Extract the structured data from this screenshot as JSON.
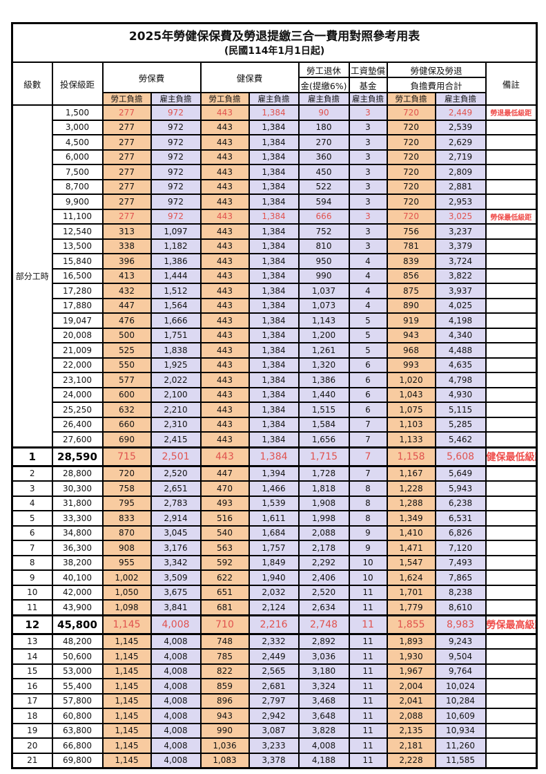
{
  "title": "2025年勞健保保費及勞退提繳三合一費用對照參考用表",
  "subtitle": "(民國114年1月1日起)",
  "header": {
    "level": "級數",
    "bracket": "投保級距",
    "labor_insurance": "勞保費",
    "health_insurance": "健保費",
    "pension_line1": "勞工退休",
    "pension_line2": "金(提繳6%)",
    "wage_fund_line1": "工資墊償",
    "wage_fund_line2": "基金",
    "total_line1": "勞健保及勞退",
    "total_line2": "負擔費用合計",
    "remarks": "備註",
    "employee": "勞工負擔",
    "employer": "雇主負擔"
  },
  "part_time_label": "部分工時",
  "colors": {
    "employee_bg": "#F8CBA0",
    "employer_bg": "#DCD9F2",
    "highlight_text": "#E0524E",
    "remark_text": "#EF4D4A"
  },
  "rows": [
    {
      "section_label": "部分工時",
      "section_rows": 23,
      "bracket": "1,500",
      "labor_emp": "277",
      "labor_er": "972",
      "health_emp": "443",
      "health_er": "1,384",
      "pension_er": "90",
      "fund_er": "3",
      "total_emp": "720",
      "total_er": "2,449",
      "remark": "勞退最低級距",
      "red": true,
      "big": false
    },
    {
      "bracket": "3,000",
      "labor_emp": "277",
      "labor_er": "972",
      "health_emp": "443",
      "health_er": "1,384",
      "pension_er": "180",
      "fund_er": "3",
      "total_emp": "720",
      "total_er": "2,539",
      "remark": "",
      "red": false,
      "big": false
    },
    {
      "bracket": "4,500",
      "labor_emp": "277",
      "labor_er": "972",
      "health_emp": "443",
      "health_er": "1,384",
      "pension_er": "270",
      "fund_er": "3",
      "total_emp": "720",
      "total_er": "2,629",
      "remark": "",
      "red": false,
      "big": false
    },
    {
      "bracket": "6,000",
      "labor_emp": "277",
      "labor_er": "972",
      "health_emp": "443",
      "health_er": "1,384",
      "pension_er": "360",
      "fund_er": "3",
      "total_emp": "720",
      "total_er": "2,719",
      "remark": "",
      "red": false,
      "big": false
    },
    {
      "bracket": "7,500",
      "labor_emp": "277",
      "labor_er": "972",
      "health_emp": "443",
      "health_er": "1,384",
      "pension_er": "450",
      "fund_er": "3",
      "total_emp": "720",
      "total_er": "2,809",
      "remark": "",
      "red": false,
      "big": false
    },
    {
      "bracket": "8,700",
      "labor_emp": "277",
      "labor_er": "972",
      "health_emp": "443",
      "health_er": "1,384",
      "pension_er": "522",
      "fund_er": "3",
      "total_emp": "720",
      "total_er": "2,881",
      "remark": "",
      "red": false,
      "big": false
    },
    {
      "bracket": "9,900",
      "labor_emp": "277",
      "labor_er": "972",
      "health_emp": "443",
      "health_er": "1,384",
      "pension_er": "594",
      "fund_er": "3",
      "total_emp": "720",
      "total_er": "2,953",
      "remark": "",
      "red": false,
      "big": false
    },
    {
      "bracket": "11,100",
      "labor_emp": "277",
      "labor_er": "972",
      "health_emp": "443",
      "health_er": "1,384",
      "pension_er": "666",
      "fund_er": "3",
      "total_emp": "720",
      "total_er": "3,025",
      "remark": "勞保最低級距",
      "red": true,
      "big": false
    },
    {
      "bracket": "12,540",
      "labor_emp": "313",
      "labor_er": "1,097",
      "health_emp": "443",
      "health_er": "1,384",
      "pension_er": "752",
      "fund_er": "3",
      "total_emp": "756",
      "total_er": "3,237",
      "remark": "",
      "red": false,
      "big": false
    },
    {
      "bracket": "13,500",
      "labor_emp": "338",
      "labor_er": "1,182",
      "health_emp": "443",
      "health_er": "1,384",
      "pension_er": "810",
      "fund_er": "3",
      "total_emp": "781",
      "total_er": "3,379",
      "remark": "",
      "red": false,
      "big": false
    },
    {
      "bracket": "15,840",
      "labor_emp": "396",
      "labor_er": "1,386",
      "health_emp": "443",
      "health_er": "1,384",
      "pension_er": "950",
      "fund_er": "4",
      "total_emp": "839",
      "total_er": "3,724",
      "remark": "",
      "red": false,
      "big": false
    },
    {
      "bracket": "16,500",
      "labor_emp": "413",
      "labor_er": "1,444",
      "health_emp": "443",
      "health_er": "1,384",
      "pension_er": "990",
      "fund_er": "4",
      "total_emp": "856",
      "total_er": "3,822",
      "remark": "",
      "red": false,
      "big": false
    },
    {
      "bracket": "17,280",
      "labor_emp": "432",
      "labor_er": "1,512",
      "health_emp": "443",
      "health_er": "1,384",
      "pension_er": "1,037",
      "fund_er": "4",
      "total_emp": "875",
      "total_er": "3,937",
      "remark": "",
      "red": false,
      "big": false
    },
    {
      "bracket": "17,880",
      "labor_emp": "447",
      "labor_er": "1,564",
      "health_emp": "443",
      "health_er": "1,384",
      "pension_er": "1,073",
      "fund_er": "4",
      "total_emp": "890",
      "total_er": "4,025",
      "remark": "",
      "red": false,
      "big": false
    },
    {
      "bracket": "19,047",
      "labor_emp": "476",
      "labor_er": "1,666",
      "health_emp": "443",
      "health_er": "1,384",
      "pension_er": "1,143",
      "fund_er": "5",
      "total_emp": "919",
      "total_er": "4,198",
      "remark": "",
      "red": false,
      "big": false
    },
    {
      "bracket": "20,008",
      "labor_emp": "500",
      "labor_er": "1,751",
      "health_emp": "443",
      "health_er": "1,384",
      "pension_er": "1,200",
      "fund_er": "5",
      "total_emp": "943",
      "total_er": "4,340",
      "remark": "",
      "red": false,
      "big": false
    },
    {
      "bracket": "21,009",
      "labor_emp": "525",
      "labor_er": "1,838",
      "health_emp": "443",
      "health_er": "1,384",
      "pension_er": "1,261",
      "fund_er": "5",
      "total_emp": "968",
      "total_er": "4,488",
      "remark": "",
      "red": false,
      "big": false
    },
    {
      "bracket": "22,000",
      "labor_emp": "550",
      "labor_er": "1,925",
      "health_emp": "443",
      "health_er": "1,384",
      "pension_er": "1,320",
      "fund_er": "6",
      "total_emp": "993",
      "total_er": "4,635",
      "remark": "",
      "red": false,
      "big": false
    },
    {
      "bracket": "23,100",
      "labor_emp": "577",
      "labor_er": "2,022",
      "health_emp": "443",
      "health_er": "1,384",
      "pension_er": "1,386",
      "fund_er": "6",
      "total_emp": "1,020",
      "total_er": "4,798",
      "remark": "",
      "red": false,
      "big": false
    },
    {
      "bracket": "24,000",
      "labor_emp": "600",
      "labor_er": "2,100",
      "health_emp": "443",
      "health_er": "1,384",
      "pension_er": "1,440",
      "fund_er": "6",
      "total_emp": "1,043",
      "total_er": "4,930",
      "remark": "",
      "red": false,
      "big": false
    },
    {
      "bracket": "25,250",
      "labor_emp": "632",
      "labor_er": "2,210",
      "health_emp": "443",
      "health_er": "1,384",
      "pension_er": "1,515",
      "fund_er": "6",
      "total_emp": "1,075",
      "total_er": "5,115",
      "remark": "",
      "red": false,
      "big": false
    },
    {
      "bracket": "26,400",
      "labor_emp": "660",
      "labor_er": "2,310",
      "health_emp": "443",
      "health_er": "1,384",
      "pension_er": "1,584",
      "fund_er": "7",
      "total_emp": "1,103",
      "total_er": "5,285",
      "remark": "",
      "red": false,
      "big": false
    },
    {
      "bracket": "27,600",
      "labor_emp": "690",
      "labor_er": "2,415",
      "health_emp": "443",
      "health_er": "1,384",
      "pension_er": "1,656",
      "fund_er": "7",
      "total_emp": "1,133",
      "total_er": "5,462",
      "remark": "",
      "red": false,
      "big": false
    },
    {
      "level": "1",
      "bracket": "28,590",
      "labor_emp": "715",
      "labor_er": "2,501",
      "health_emp": "443",
      "health_er": "1,384",
      "pension_er": "1,715",
      "fund_er": "7",
      "total_emp": "1,158",
      "total_er": "5,608",
      "remark": "健保最低級距",
      "red": true,
      "big": true
    },
    {
      "level": "2",
      "bracket": "28,800",
      "labor_emp": "720",
      "labor_er": "2,520",
      "health_emp": "447",
      "health_er": "1,394",
      "pension_er": "1,728",
      "fund_er": "7",
      "total_emp": "1,167",
      "total_er": "5,649",
      "remark": "",
      "red": false,
      "big": false
    },
    {
      "level": "3",
      "bracket": "30,300",
      "labor_emp": "758",
      "labor_er": "2,651",
      "health_emp": "470",
      "health_er": "1,466",
      "pension_er": "1,818",
      "fund_er": "8",
      "total_emp": "1,228",
      "total_er": "5,943",
      "remark": "",
      "red": false,
      "big": false
    },
    {
      "level": "4",
      "bracket": "31,800",
      "labor_emp": "795",
      "labor_er": "2,783",
      "health_emp": "493",
      "health_er": "1,539",
      "pension_er": "1,908",
      "fund_er": "8",
      "total_emp": "1,288",
      "total_er": "6,238",
      "remark": "",
      "red": false,
      "big": false
    },
    {
      "level": "5",
      "bracket": "33,300",
      "labor_emp": "833",
      "labor_er": "2,914",
      "health_emp": "516",
      "health_er": "1,611",
      "pension_er": "1,998",
      "fund_er": "8",
      "total_emp": "1,349",
      "total_er": "6,531",
      "remark": "",
      "red": false,
      "big": false
    },
    {
      "level": "6",
      "bracket": "34,800",
      "labor_emp": "870",
      "labor_er": "3,045",
      "health_emp": "540",
      "health_er": "1,684",
      "pension_er": "2,088",
      "fund_er": "9",
      "total_emp": "1,410",
      "total_er": "6,826",
      "remark": "",
      "red": false,
      "big": false
    },
    {
      "level": "7",
      "bracket": "36,300",
      "labor_emp": "908",
      "labor_er": "3,176",
      "health_emp": "563",
      "health_er": "1,757",
      "pension_er": "2,178",
      "fund_er": "9",
      "total_emp": "1,471",
      "total_er": "7,120",
      "remark": "",
      "red": false,
      "big": false
    },
    {
      "level": "8",
      "bracket": "38,200",
      "labor_emp": "955",
      "labor_er": "3,342",
      "health_emp": "592",
      "health_er": "1,849",
      "pension_er": "2,292",
      "fund_er": "10",
      "total_emp": "1,547",
      "total_er": "7,493",
      "remark": "",
      "red": false,
      "big": false
    },
    {
      "level": "9",
      "bracket": "40,100",
      "labor_emp": "1,002",
      "labor_er": "3,509",
      "health_emp": "622",
      "health_er": "1,940",
      "pension_er": "2,406",
      "fund_er": "10",
      "total_emp": "1,624",
      "total_er": "7,865",
      "remark": "",
      "red": false,
      "big": false
    },
    {
      "level": "10",
      "bracket": "42,000",
      "labor_emp": "1,050",
      "labor_er": "3,675",
      "health_emp": "651",
      "health_er": "2,032",
      "pension_er": "2,520",
      "fund_er": "11",
      "total_emp": "1,701",
      "total_er": "8,238",
      "remark": "",
      "red": false,
      "big": false
    },
    {
      "level": "11",
      "bracket": "43,900",
      "labor_emp": "1,098",
      "labor_er": "3,841",
      "health_emp": "681",
      "health_er": "2,124",
      "pension_er": "2,634",
      "fund_er": "11",
      "total_emp": "1,779",
      "total_er": "8,610",
      "remark": "",
      "red": false,
      "big": false
    },
    {
      "level": "12",
      "bracket": "45,800",
      "labor_emp": "1,145",
      "labor_er": "4,008",
      "health_emp": "710",
      "health_er": "2,216",
      "pension_er": "2,748",
      "fund_er": "11",
      "total_emp": "1,855",
      "total_er": "8,983",
      "remark": "勞保最高級距",
      "red": true,
      "big": true
    },
    {
      "level": "13",
      "bracket": "48,200",
      "labor_emp": "1,145",
      "labor_er": "4,008",
      "health_emp": "748",
      "health_er": "2,332",
      "pension_er": "2,892",
      "fund_er": "11",
      "total_emp": "1,893",
      "total_er": "9,243",
      "remark": "",
      "red": false,
      "big": false
    },
    {
      "level": "14",
      "bracket": "50,600",
      "labor_emp": "1,145",
      "labor_er": "4,008",
      "health_emp": "785",
      "health_er": "2,449",
      "pension_er": "3,036",
      "fund_er": "11",
      "total_emp": "1,930",
      "total_er": "9,504",
      "remark": "",
      "red": false,
      "big": false
    },
    {
      "level": "15",
      "bracket": "53,000",
      "labor_emp": "1,145",
      "labor_er": "4,008",
      "health_emp": "822",
      "health_er": "2,565",
      "pension_er": "3,180",
      "fund_er": "11",
      "total_emp": "1,967",
      "total_er": "9,764",
      "remark": "",
      "red": false,
      "big": false
    },
    {
      "level": "16",
      "bracket": "55,400",
      "labor_emp": "1,145",
      "labor_er": "4,008",
      "health_emp": "859",
      "health_er": "2,681",
      "pension_er": "3,324",
      "fund_er": "11",
      "total_emp": "2,004",
      "total_er": "10,024",
      "remark": "",
      "red": false,
      "big": false
    },
    {
      "level": "17",
      "bracket": "57,800",
      "labor_emp": "1,145",
      "labor_er": "4,008",
      "health_emp": "896",
      "health_er": "2,797",
      "pension_er": "3,468",
      "fund_er": "11",
      "total_emp": "2,041",
      "total_er": "10,284",
      "remark": "",
      "red": false,
      "big": false
    },
    {
      "level": "18",
      "bracket": "60,800",
      "labor_emp": "1,145",
      "labor_er": "4,008",
      "health_emp": "943",
      "health_er": "2,942",
      "pension_er": "3,648",
      "fund_er": "11",
      "total_emp": "2,088",
      "total_er": "10,609",
      "remark": "",
      "red": false,
      "big": false
    },
    {
      "level": "19",
      "bracket": "63,800",
      "labor_emp": "1,145",
      "labor_er": "4,008",
      "health_emp": "990",
      "health_er": "3,087",
      "pension_er": "3,828",
      "fund_er": "11",
      "total_emp": "2,135",
      "total_er": "10,934",
      "remark": "",
      "red": false,
      "big": false
    },
    {
      "level": "20",
      "bracket": "66,800",
      "labor_emp": "1,145",
      "labor_er": "4,008",
      "health_emp": "1,036",
      "health_er": "3,233",
      "pension_er": "4,008",
      "fund_er": "11",
      "total_emp": "2,181",
      "total_er": "11,260",
      "remark": "",
      "red": false,
      "big": false
    },
    {
      "level": "21",
      "bracket": "69,800",
      "labor_emp": "1,145",
      "labor_er": "4,008",
      "health_emp": "1,083",
      "health_er": "3,378",
      "pension_er": "4,188",
      "fund_er": "11",
      "total_emp": "2,228",
      "total_er": "11,585",
      "remark": "",
      "red": false,
      "big": false
    }
  ]
}
